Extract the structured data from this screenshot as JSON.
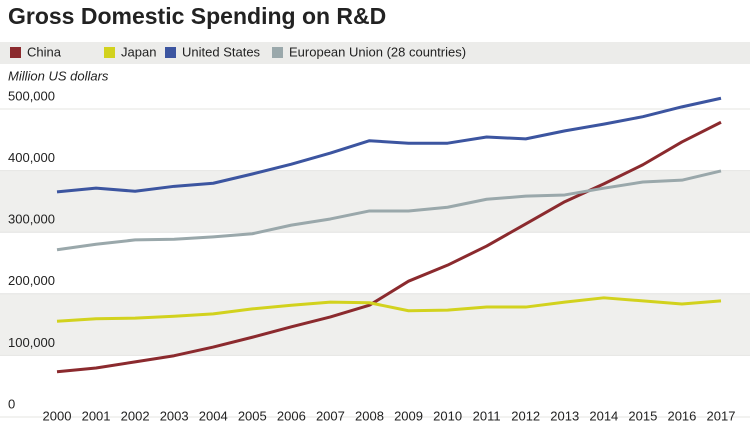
{
  "chart_data": {
    "type": "line",
    "title": "Gross Domestic Spending on R&D",
    "y_label": "Million US dollars",
    "categories": [
      "2000",
      "2001",
      "2002",
      "2003",
      "2004",
      "2005",
      "2006",
      "2007",
      "2008",
      "2009",
      "2010",
      "2011",
      "2012",
      "2013",
      "2014",
      "2015",
      "2016",
      "2017"
    ],
    "series": [
      {
        "name": "China",
        "color": "#8b2a2e",
        "values": [
          54000,
          60000,
          70000,
          80000,
          94000,
          110000,
          127000,
          143000,
          162000,
          201000,
          227000,
          258000,
          294000,
          330000,
          359000,
          390000,
          427000,
          459000
        ]
      },
      {
        "name": "Japan",
        "color": "#d2d21e",
        "values": [
          136000,
          140000,
          141000,
          144000,
          148000,
          156000,
          162000,
          167000,
          166000,
          153000,
          154000,
          159000,
          159000,
          167000,
          174000,
          169000,
          164000,
          169000
        ]
      },
      {
        "name": "United States",
        "color": "#3c55a0",
        "values": [
          346000,
          352000,
          347000,
          355000,
          360000,
          375000,
          391000,
          409000,
          429000,
          425000,
          425000,
          435000,
          432000,
          445000,
          456000,
          468000,
          484000,
          498000
        ]
      },
      {
        "name": "European Union (28 countries)",
        "color": "#9aa8ab",
        "values": [
          252000,
          261000,
          268000,
          269000,
          273000,
          278000,
          292000,
          302000,
          315000,
          315000,
          321000,
          334000,
          339000,
          341000,
          352000,
          362000,
          365000,
          380000
        ]
      }
    ],
    "ylim": [
      0,
      500000
    ],
    "yticks": [
      0,
      {
        "value": 100000,
        "label": "100,000"
      },
      {
        "value": 200000,
        "label": "200,000"
      },
      {
        "value": 300000,
        "label": "300,000"
      },
      {
        "value": 400000,
        "label": "400,000"
      },
      {
        "value": 500000,
        "label": "500,000"
      }
    ],
    "grid": true
  }
}
